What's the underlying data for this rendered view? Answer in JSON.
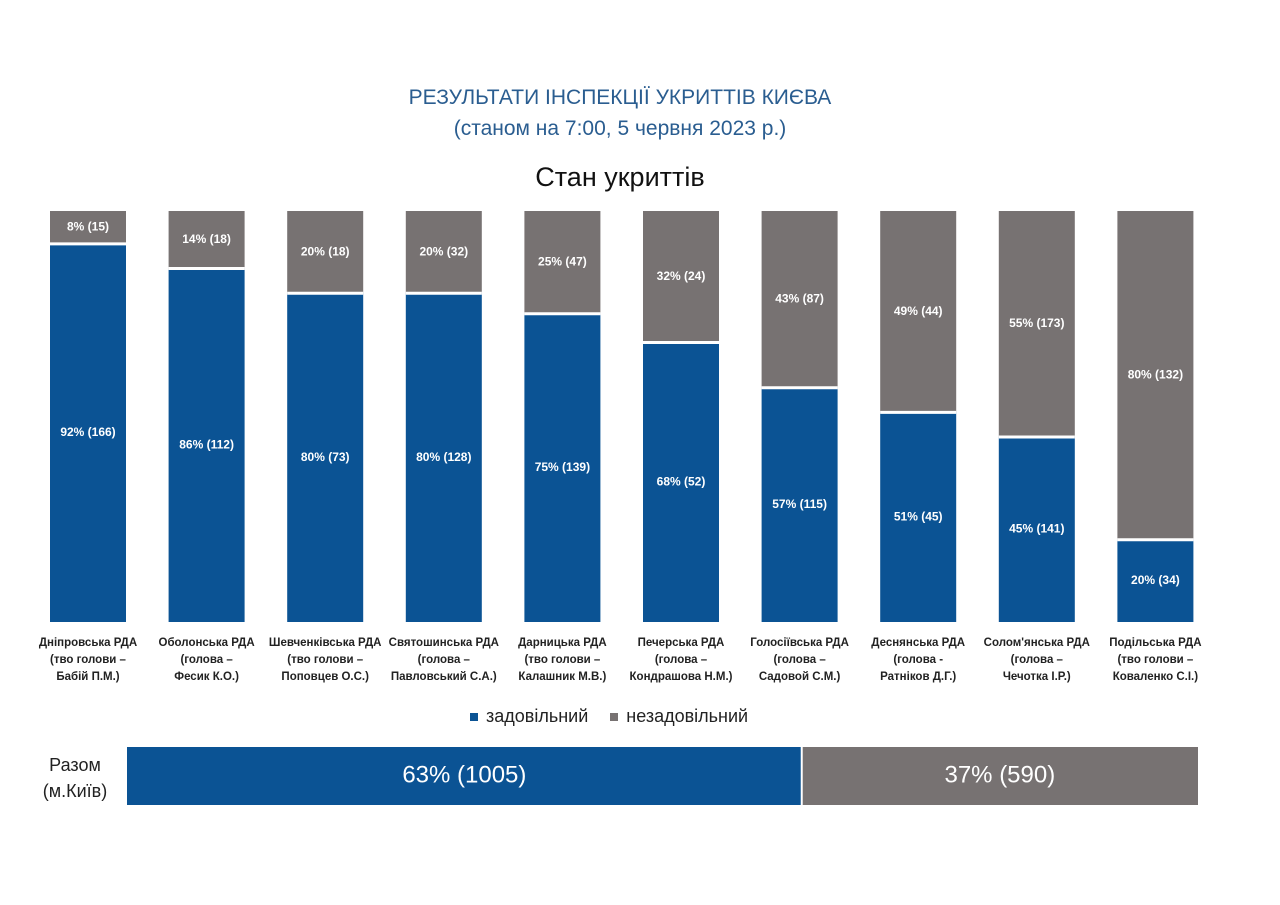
{
  "title": "РЕЗУЛЬТАТИ ІНСПЕКЦІЇ УКРИТТІВ КИЄВА",
  "subtitle": "(станом на 7:00, 5 червня 2023 р.)",
  "chart_title": "Стан укриттів",
  "colors": {
    "satisfactory": "#0b5394",
    "unsatisfactory": "#777272",
    "title": "#2a5d90"
  },
  "chart_data": [
    {
      "type": "bar",
      "stacked": true,
      "normalized_percent": true,
      "title": "Стан укриттів",
      "ylim": [
        0,
        100
      ],
      "legend_position": "bottom",
      "grid": false,
      "categories": [
        [
          "Дніпровська РДА",
          "(тво голови –",
          "Бабій П.М.)"
        ],
        [
          "Оболонська РДА",
          "(голова –",
          "Фесик К.О.)"
        ],
        [
          "Шевченківська РДА",
          "(тво голови –",
          "Поповцев О.С.)"
        ],
        [
          "Святошинська РДА",
          "(голова –",
          "Павловський С.А.)"
        ],
        [
          "Дарницька РДА",
          "(тво голови –",
          "Калашник М.В.)"
        ],
        [
          "Печерська РДА",
          "(голова –",
          "Кондрашова Н.М.)"
        ],
        [
          "Голосіївська РДА",
          "(голова –",
          "Садовой С.М.)"
        ],
        [
          "Деснянська РДА",
          "(голова -",
          "Ратніков Д.Г.)"
        ],
        [
          "Солом'янська РДА",
          "(голова –",
          "Чечотка І.Р.)"
        ],
        [
          "Подільська РДА",
          "(тво голови –",
          "Коваленко С.І.)"
        ]
      ],
      "series": [
        {
          "name": "задовільний",
          "percent": [
            92,
            86,
            80,
            80,
            75,
            68,
            57,
            51,
            45,
            20
          ],
          "count": [
            166,
            112,
            73,
            128,
            139,
            52,
            115,
            45,
            141,
            34
          ]
        },
        {
          "name": "незадовільний",
          "percent": [
            8,
            14,
            20,
            20,
            25,
            32,
            43,
            49,
            55,
            80
          ],
          "count": [
            15,
            18,
            18,
            32,
            47,
            24,
            87,
            44,
            173,
            132
          ]
        }
      ]
    },
    {
      "type": "bar",
      "orientation": "horizontal",
      "stacked": true,
      "categories": [
        "Разом (м.Київ)"
      ],
      "series": [
        {
          "name": "задовільний",
          "percent": [
            63
          ],
          "count": [
            1005
          ]
        },
        {
          "name": "незадовільний",
          "percent": [
            37
          ],
          "count": [
            590
          ]
        }
      ]
    }
  ],
  "total_label": [
    "Разом",
    "(м.Київ)"
  ]
}
